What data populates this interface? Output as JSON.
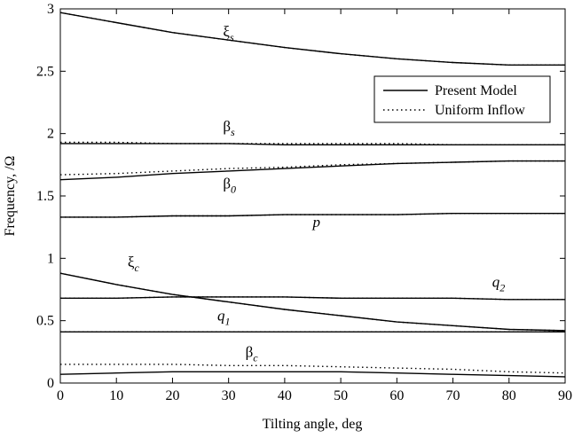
{
  "chart_data": {
    "type": "line",
    "xlabel": "Tilting angle, deg",
    "ylabel": "Frequency, /Ω",
    "xlim": [
      0,
      90
    ],
    "ylim": [
      0,
      3
    ],
    "x_ticks": [
      0,
      10,
      20,
      30,
      40,
      50,
      60,
      70,
      80,
      90
    ],
    "y_ticks": [
      0,
      0.5,
      1,
      1.5,
      2,
      2.5,
      3
    ],
    "x_tick_labels": [
      "0",
      "10",
      "20",
      "30",
      "40",
      "50",
      "60",
      "70",
      "80",
      "90"
    ],
    "y_tick_labels": [
      "0",
      "0.5",
      "1",
      "1.5",
      "2",
      "2.5",
      "3"
    ],
    "grid": false,
    "legend": {
      "placement": "top-right",
      "entries": [
        {
          "label": "Present Model",
          "style": "solid"
        },
        {
          "label": "Uniform Inflow",
          "style": "dotted"
        }
      ]
    },
    "x": [
      0,
      10,
      20,
      30,
      40,
      50,
      60,
      70,
      80,
      90
    ],
    "series": [
      {
        "curve": "xi_s",
        "style": "solid",
        "values": [
          2.97,
          2.89,
          2.81,
          2.75,
          2.69,
          2.64,
          2.6,
          2.57,
          2.55,
          2.55
        ]
      },
      {
        "curve": "xi_s",
        "style": "dotted",
        "values": [
          2.97,
          2.89,
          2.81,
          2.75,
          2.69,
          2.64,
          2.6,
          2.57,
          2.55,
          2.55
        ]
      },
      {
        "curve": "beta_s",
        "style": "solid",
        "values": [
          1.92,
          1.92,
          1.92,
          1.92,
          1.91,
          1.91,
          1.91,
          1.91,
          1.91,
          1.91
        ]
      },
      {
        "curve": "beta_s",
        "style": "dotted",
        "values": [
          1.93,
          1.93,
          1.92,
          1.92,
          1.92,
          1.92,
          1.92,
          1.91,
          1.91,
          1.91
        ]
      },
      {
        "curve": "beta_0",
        "style": "solid",
        "values": [
          1.63,
          1.65,
          1.68,
          1.7,
          1.72,
          1.74,
          1.76,
          1.77,
          1.78,
          1.78
        ]
      },
      {
        "curve": "beta_0",
        "style": "dotted",
        "values": [
          1.67,
          1.68,
          1.7,
          1.72,
          1.73,
          1.75,
          1.76,
          1.77,
          1.78,
          1.78
        ]
      },
      {
        "curve": "p",
        "style": "solid",
        "values": [
          1.33,
          1.33,
          1.34,
          1.34,
          1.35,
          1.35,
          1.35,
          1.36,
          1.36,
          1.36
        ]
      },
      {
        "curve": "p",
        "style": "dotted",
        "values": [
          1.33,
          1.33,
          1.34,
          1.34,
          1.35,
          1.35,
          1.35,
          1.36,
          1.36,
          1.36
        ]
      },
      {
        "curve": "xi_c",
        "style": "solid",
        "values": [
          0.88,
          0.79,
          0.71,
          0.65,
          0.59,
          0.54,
          0.49,
          0.46,
          0.43,
          0.42
        ]
      },
      {
        "curve": "xi_c",
        "style": "dotted",
        "values": [
          0.88,
          0.79,
          0.71,
          0.65,
          0.59,
          0.54,
          0.49,
          0.46,
          0.43,
          0.42
        ]
      },
      {
        "curve": "q_2",
        "style": "solid",
        "values": [
          0.68,
          0.68,
          0.69,
          0.69,
          0.69,
          0.68,
          0.68,
          0.68,
          0.67,
          0.67
        ]
      },
      {
        "curve": "q_2",
        "style": "dotted",
        "values": [
          0.68,
          0.68,
          0.69,
          0.69,
          0.69,
          0.68,
          0.68,
          0.68,
          0.67,
          0.67
        ]
      },
      {
        "curve": "q_1",
        "style": "solid",
        "values": [
          0.41,
          0.41,
          0.41,
          0.41,
          0.41,
          0.41,
          0.41,
          0.41,
          0.41,
          0.41
        ]
      },
      {
        "curve": "q_1",
        "style": "dotted",
        "values": [
          0.41,
          0.41,
          0.41,
          0.41,
          0.41,
          0.41,
          0.41,
          0.41,
          0.41,
          0.41
        ]
      },
      {
        "curve": "beta_c",
        "style": "solid",
        "values": [
          0.07,
          0.08,
          0.09,
          0.09,
          0.09,
          0.09,
          0.08,
          0.07,
          0.06,
          0.05
        ]
      },
      {
        "curve": "beta_c",
        "style": "dotted",
        "values": [
          0.15,
          0.15,
          0.15,
          0.14,
          0.14,
          0.13,
          0.12,
          0.11,
          0.09,
          0.08
        ]
      }
    ],
    "annotations": [
      {
        "base": "ξ",
        "sub": "s",
        "x": 29,
        "y": 2.78
      },
      {
        "base": "β",
        "sub": "s",
        "x": 29,
        "y": 2.02
      },
      {
        "base": "β",
        "sub": "0",
        "x": 29,
        "y": 1.56
      },
      {
        "base": "p",
        "sub": "",
        "x": 45,
        "y": 1.25
      },
      {
        "base": "ξ",
        "sub": "c",
        "x": 12,
        "y": 0.93
      },
      {
        "base": "q",
        "sub": "2",
        "x": 77,
        "y": 0.77
      },
      {
        "base": "q",
        "sub": "1",
        "x": 28,
        "y": 0.5
      },
      {
        "base": "β",
        "sub": "c",
        "x": 33,
        "y": 0.21
      }
    ]
  }
}
